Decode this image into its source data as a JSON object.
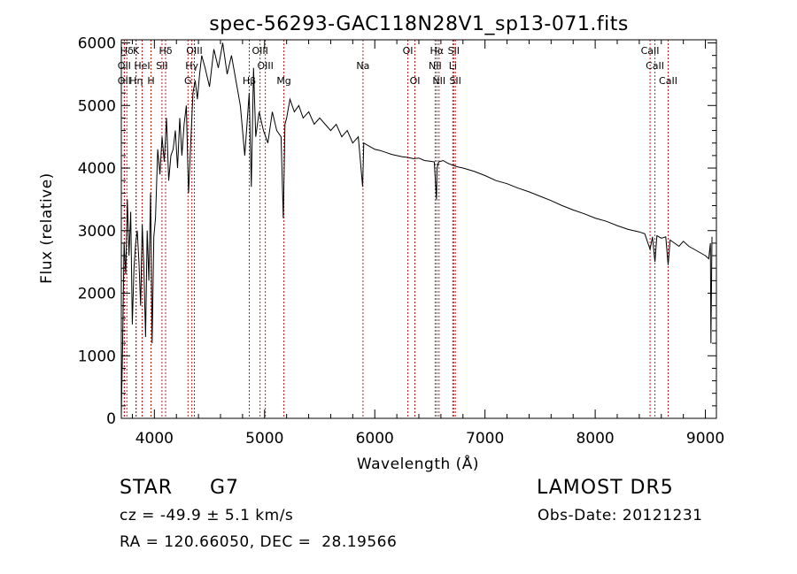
{
  "chart_data": {
    "type": "line",
    "title": "spec-56293-GAC118N28V1_sp13-071.fits",
    "xlabel": "Wavelength (Å)",
    "ylabel": "Flux (relative)",
    "xlim": [
      3700,
      9100
    ],
    "ylim": [
      0,
      6050
    ],
    "x_ticks": [
      4000,
      5000,
      6000,
      7000,
      8000,
      9000
    ],
    "y_ticks": [
      0,
      1000,
      2000,
      3000,
      4000,
      5000,
      6000
    ],
    "grid": false,
    "line_color": "#000000",
    "marker_color": "#b22222",
    "spectrum": {
      "x": [
        3700,
        3712,
        3725,
        3740,
        3755,
        3770,
        3785,
        3800,
        3815,
        3830,
        3845,
        3860,
        3875,
        3890,
        3905,
        3920,
        3935,
        3950,
        3965,
        3980,
        3995,
        4010,
        4030,
        4050,
        4070,
        4090,
        4110,
        4130,
        4150,
        4170,
        4190,
        4210,
        4230,
        4250,
        4270,
        4290,
        4310,
        4330,
        4350,
        4370,
        4390,
        4410,
        4430,
        4460,
        4500,
        4540,
        4580,
        4620,
        4660,
        4700,
        4740,
        4780,
        4820,
        4860,
        4880,
        4900,
        4920,
        4950,
        4990,
        5030,
        5070,
        5110,
        5150,
        5170,
        5185,
        5200,
        5230,
        5270,
        5310,
        5350,
        5400,
        5450,
        5500,
        5550,
        5600,
        5650,
        5700,
        5750,
        5800,
        5850,
        5890,
        5900,
        5950,
        6000,
        6050,
        6100,
        6150,
        6200,
        6250,
        6300,
        6350,
        6400,
        6450,
        6500,
        6540,
        6560,
        6565,
        6580,
        6620,
        6660,
        6700,
        6750,
        6800,
        6900,
        7000,
        7100,
        7200,
        7300,
        7400,
        7500,
        7600,
        7700,
        7800,
        7900,
        8000,
        8100,
        8200,
        8300,
        8400,
        8450,
        8498,
        8520,
        8542,
        8560,
        8600,
        8640,
        8662,
        8680,
        8720,
        8760,
        8800,
        8850,
        8900,
        8950,
        9000,
        9030,
        9045,
        9050,
        9060
      ],
      "y": [
        50,
        1200,
        2800,
        2300,
        3500,
        2600,
        3300,
        1500,
        2400,
        2800,
        3000,
        2500,
        1800,
        3100,
        2400,
        1300,
        3000,
        2200,
        3600,
        1200,
        2900,
        3200,
        4300,
        3900,
        4500,
        4100,
        4800,
        3800,
        4200,
        4300,
        4600,
        4000,
        4800,
        4200,
        4700,
        5000,
        3600,
        4400,
        5200,
        5400,
        5100,
        5500,
        5800,
        5600,
        5300,
        5900,
        5600,
        6000,
        5500,
        5800,
        5400,
        5000,
        4200,
        5200,
        3700,
        5600,
        4500,
        4900,
        4600,
        4400,
        4900,
        4600,
        4500,
        3200,
        4700,
        4800,
        5100,
        4900,
        5000,
        4800,
        4900,
        4700,
        4800,
        4700,
        4600,
        4700,
        4500,
        4600,
        4400,
        4500,
        3700,
        4400,
        4350,
        4300,
        4280,
        4250,
        4220,
        4200,
        4180,
        4170,
        4150,
        4160,
        4120,
        4110,
        4100,
        3500,
        4000,
        4100,
        4120,
        4080,
        4050,
        4020,
        4000,
        3950,
        3880,
        3800,
        3750,
        3680,
        3620,
        3550,
        3480,
        3400,
        3330,
        3270,
        3200,
        3150,
        3080,
        3020,
        2980,
        2950,
        2700,
        2900,
        2500,
        2920,
        2880,
        2900,
        2450,
        2850,
        2800,
        2750,
        2830,
        2750,
        2700,
        2650,
        2600,
        2550,
        2800,
        1200,
        2900
      ]
    },
    "lines": [
      {
        "label": "Hδ",
        "x": 3750,
        "row": 0
      },
      {
        "label": "K",
        "x": 3833,
        "row": 0
      },
      {
        "label": "Hδ",
        "x": 4102,
        "row": 0
      },
      {
        "label": "OIII",
        "x": 4363,
        "row": 0
      },
      {
        "label": "OIII",
        "x": 4959,
        "row": 0
      },
      {
        "label": "OI",
        "x": 6300,
        "row": 0
      },
      {
        "label": "Hα",
        "x": 6563,
        "row": 0
      },
      {
        "label": "SII",
        "x": 6716,
        "row": 0
      },
      {
        "label": "CaII",
        "x": 8498,
        "row": 0
      },
      {
        "label": "OII",
        "x": 3727,
        "row": 1
      },
      {
        "label": "HeI",
        "x": 3889,
        "row": 1
      },
      {
        "label": "SII",
        "x": 4069,
        "row": 1
      },
      {
        "label": "Hγ",
        "x": 4340,
        "row": 1
      },
      {
        "label": "OIII",
        "x": 5007,
        "row": 1
      },
      {
        "label": "Na",
        "x": 5893,
        "row": 1
      },
      {
        "label": "NII",
        "x": 6548,
        "row": 1
      },
      {
        "label": "Li",
        "x": 6708,
        "row": 1
      },
      {
        "label": "CaII",
        "x": 8542,
        "row": 1
      },
      {
        "label": "OII",
        "x": 3727,
        "row": 2
      },
      {
        "label": "Hη",
        "x": 3835,
        "row": 2
      },
      {
        "label": "H",
        "x": 3969,
        "row": 2
      },
      {
        "label": "G",
        "x": 4305,
        "row": 2
      },
      {
        "label": "Hβ",
        "x": 4861,
        "row": 2
      },
      {
        "label": "Mg",
        "x": 5175,
        "row": 2
      },
      {
        "label": "OI",
        "x": 6364,
        "row": 2
      },
      {
        "label": "NII",
        "x": 6583,
        "row": 2
      },
      {
        "label": "SII",
        "x": 6731,
        "row": 2
      },
      {
        "label": "CaII",
        "x": 8662,
        "row": 2
      }
    ]
  },
  "info": {
    "class_label": "STAR",
    "subclass": "G7",
    "survey": "LAMOST DR5",
    "cz": "cz = -49.9 ± 5.1 km/s",
    "obs_date": "Obs-Date: 20121231",
    "radec": "RA = 120.66050, DEC =  28.19566"
  }
}
